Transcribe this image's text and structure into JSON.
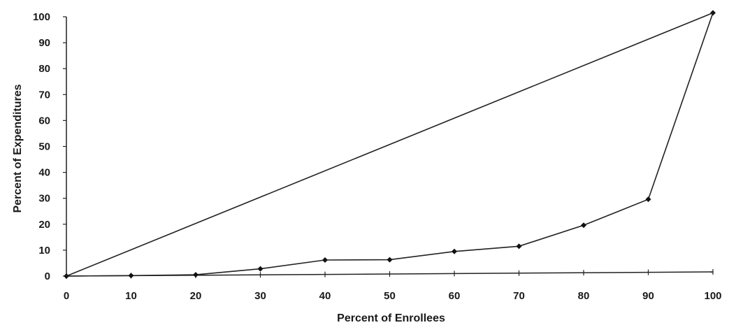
{
  "chart_data": {
    "type": "line",
    "title": "",
    "xlabel": "Percent of Enrollees",
    "ylabel": "Percent of Expenditures",
    "xlim": [
      0,
      100
    ],
    "ylim": [
      0,
      100
    ],
    "x_ticks": [
      0,
      10,
      20,
      30,
      40,
      50,
      60,
      70,
      80,
      90,
      100
    ],
    "y_ticks": [
      0,
      10,
      20,
      30,
      40,
      50,
      60,
      70,
      80,
      90,
      100
    ],
    "grid": false,
    "legend": "none",
    "series": [
      {
        "x": [
          0,
          10,
          20,
          30,
          40,
          50,
          60,
          70,
          80,
          90,
          100
        ],
        "y": [
          0,
          0.2,
          0.5,
          2.8,
          6.2,
          6.3,
          9.5,
          11.5,
          19.6,
          29.6,
          101.5
        ],
        "markers": true
      },
      {
        "x": [
          0,
          100
        ],
        "y": [
          0,
          101.5
        ],
        "markers": false
      }
    ]
  }
}
